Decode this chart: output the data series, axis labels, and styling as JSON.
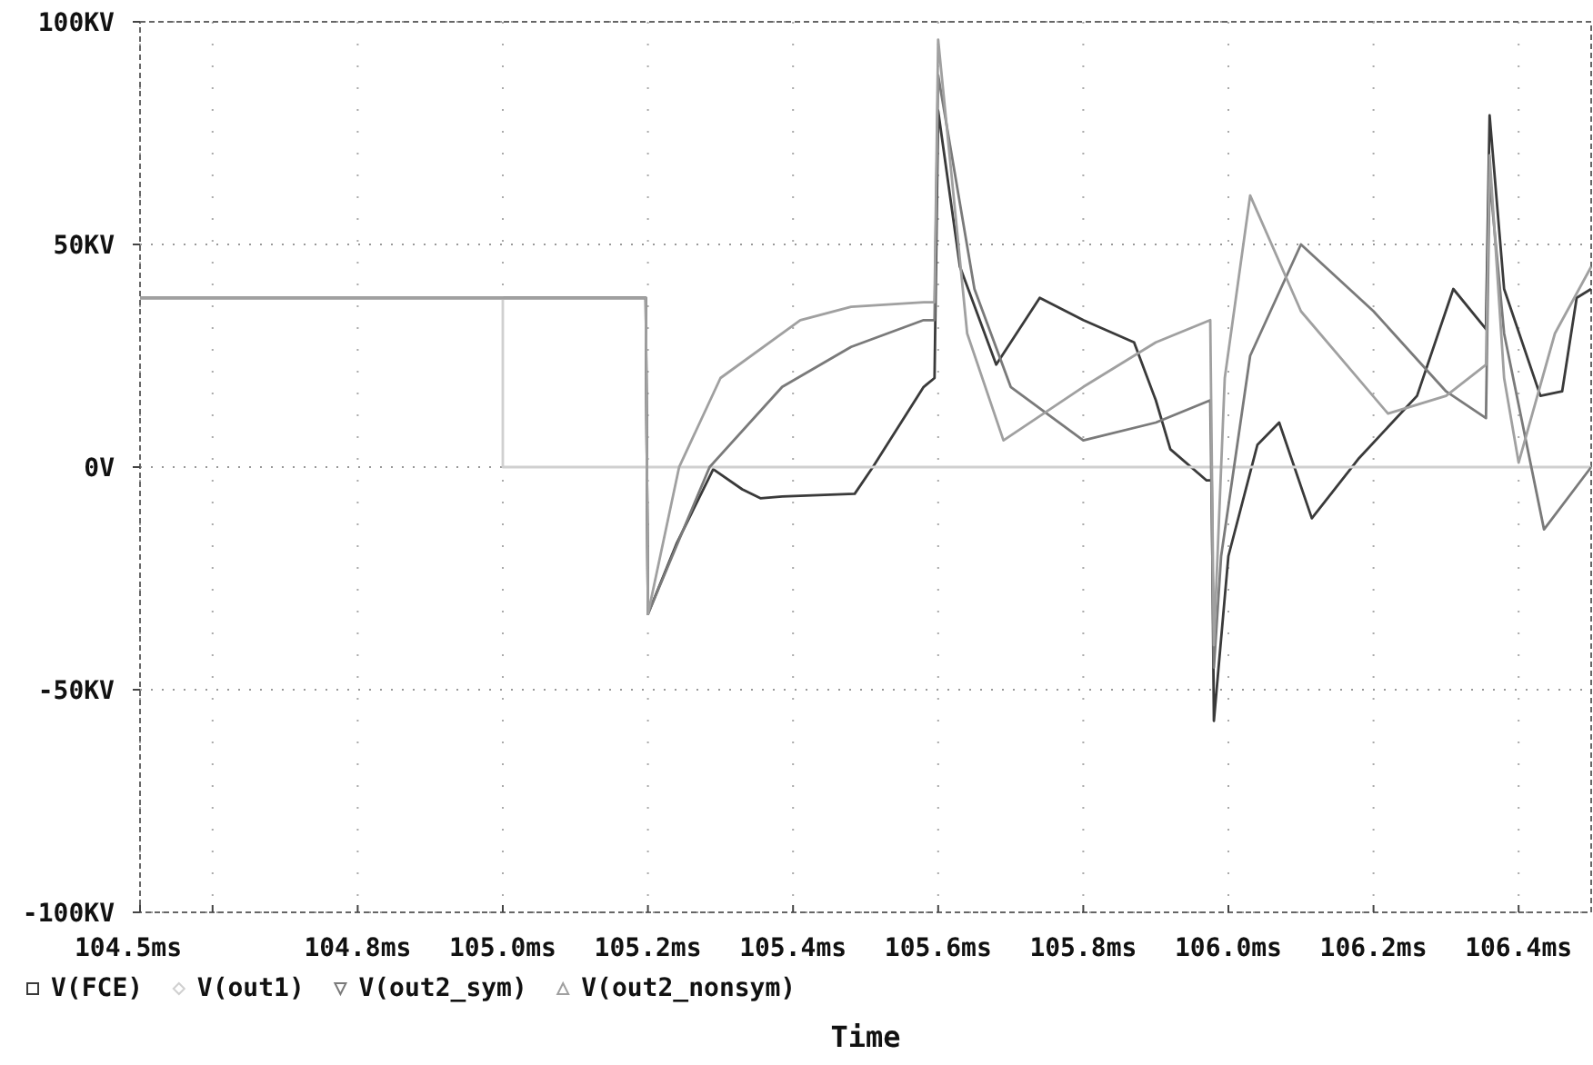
{
  "chart_data": {
    "type": "line",
    "xlabel": "Time",
    "xlim": [
      104.5,
      106.5
    ],
    "xticks": [
      {
        "value": 104.5,
        "label": "104.5ms"
      },
      {
        "value": 104.6,
        "label": null
      },
      {
        "value": 104.8,
        "label": "104.8ms"
      },
      {
        "value": 105.0,
        "label": "105.0ms"
      },
      {
        "value": 105.2,
        "label": "105.2ms"
      },
      {
        "value": 105.4,
        "label": "105.4ms"
      },
      {
        "value": 105.6,
        "label": "105.6ms"
      },
      {
        "value": 105.8,
        "label": "105.8ms"
      },
      {
        "value": 106.0,
        "label": "106.0ms"
      },
      {
        "value": 106.2,
        "label": "106.2ms"
      },
      {
        "value": 106.4,
        "label": "106.4ms"
      }
    ],
    "ylim": [
      -100,
      100
    ],
    "yticks": [
      {
        "value": 100,
        "label": "100KV"
      },
      {
        "value": 50,
        "label": "50KV"
      },
      {
        "value": 0,
        "label": "0V"
      },
      {
        "value": -50,
        "label": "-50KV"
      },
      {
        "value": -100,
        "label": "-100KV"
      }
    ],
    "grid": true,
    "legend": "bottom left",
    "series": [
      {
        "name": "V(FCE)",
        "color": "#3a3a3a",
        "x": [
          104.5,
          105.197,
          105.2,
          105.24,
          105.29,
          105.33,
          105.355,
          105.385,
          105.485,
          105.51,
          105.58,
          105.595,
          105.6,
          105.63,
          105.68,
          105.74,
          105.8,
          105.87,
          105.9,
          105.92,
          105.97,
          105.977,
          105.98,
          106.0,
          106.04,
          106.07,
          106.115,
          106.18,
          106.26,
          106.31,
          106.355,
          106.36,
          106.38,
          106.43,
          106.46,
          106.48,
          106.5
        ],
        "values": [
          38,
          38,
          -33,
          -17,
          -0.5,
          -5,
          -7,
          -6.6,
          -6,
          0,
          18,
          20,
          80,
          45,
          23,
          38,
          33,
          28,
          15,
          4,
          -3,
          -3,
          -57,
          -20,
          5,
          10,
          -11.5,
          2,
          16,
          40,
          31,
          79,
          40,
          16,
          17,
          38,
          40
        ]
      },
      {
        "name": "V(out1)",
        "color": "#d0d0d0",
        "x": [
          104.5,
          105.0,
          105.0,
          106.5
        ],
        "values": [
          38,
          38,
          0,
          0
        ]
      },
      {
        "name": "V(out2_sym)",
        "color": "#7a7a7a",
        "x": [
          104.5,
          105.197,
          105.2,
          105.285,
          105.385,
          105.48,
          105.58,
          105.595,
          105.6,
          105.65,
          105.7,
          105.8,
          105.9,
          105.975,
          105.98,
          105.99,
          106.03,
          106.1,
          106.2,
          106.3,
          106.355,
          106.36,
          106.38,
          106.435,
          106.5
        ],
        "values": [
          38,
          38,
          -33,
          0,
          18,
          27,
          33,
          33,
          88,
          40,
          18,
          6,
          10,
          15,
          -45,
          -20,
          25,
          50,
          35,
          17,
          11,
          65,
          30,
          -14,
          0
        ]
      },
      {
        "name": "V(out2_nonsym)",
        "color": "#a0a0a0",
        "x": [
          104.5,
          105.197,
          105.2,
          105.243,
          105.3,
          105.41,
          105.48,
          105.58,
          105.595,
          105.6,
          105.64,
          105.69,
          105.8,
          105.9,
          105.975,
          105.98,
          105.995,
          106.03,
          106.1,
          106.22,
          106.3,
          106.355,
          106.36,
          106.38,
          106.4,
          106.45,
          106.5
        ],
        "values": [
          38,
          38,
          -33,
          0,
          20,
          33,
          36,
          37,
          37,
          96,
          30,
          6,
          18,
          28,
          33,
          -40,
          20,
          61,
          35,
          12,
          16,
          23,
          70,
          20,
          1,
          30,
          45
        ]
      }
    ]
  }
}
